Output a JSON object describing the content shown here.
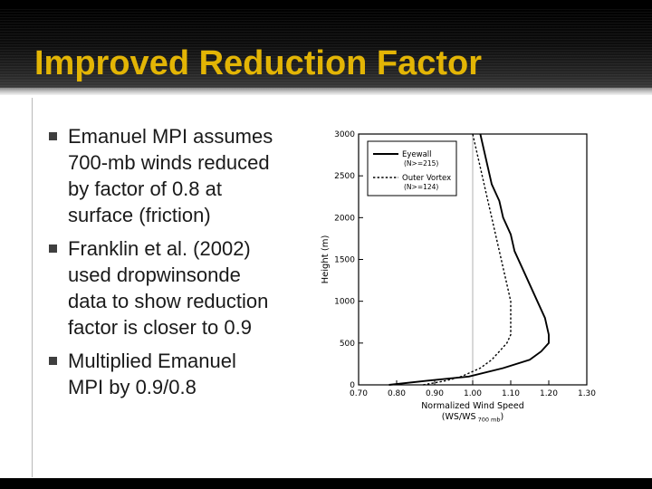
{
  "slide": {
    "title": "Improved Reduction Factor",
    "bullets": [
      {
        "text": "Emanuel MPI assumes\n700-mb winds reduced\nby factor of 0.8 at\nsurface (friction)"
      },
      {
        "text": "Franklin et al. (2002)\nused dropwinsonde\ndata to show reduction\nfactor is closer to 0.9"
      },
      {
        "text": "Multiplied Emanuel\nMPI by 0.9/0.8"
      }
    ]
  },
  "theme": {
    "title_color": "#E3B505",
    "body_text_color": "#1a1a1a",
    "bullet_marker_color": "#3f3f3f",
    "header_bg_top": "#000000",
    "header_bg_bottom": "#383838",
    "chart_line_color": "#000000",
    "reference_line_color": "#aaaaaa"
  },
  "chart_data": {
    "type": "line",
    "title": "",
    "xlabel": "Normalized Wind Speed",
    "xlabel_sub_prefix": "(WS/WS",
    "xlabel_subscript": "700 mb",
    "xlabel_sub_suffix": ")",
    "ylabel": "Height (m)",
    "xlim": [
      0.7,
      1.3
    ],
    "ylim": [
      0,
      3000
    ],
    "xtick_values": [
      0.7,
      0.8,
      0.9,
      1.0,
      1.1,
      1.2,
      1.3
    ],
    "xtick_labels": [
      "0.70",
      "0.80",
      "0.90",
      "1.00",
      "1.10",
      "1.20",
      "1.30"
    ],
    "ytick_values": [
      0,
      500,
      1000,
      1500,
      2000,
      2500,
      3000
    ],
    "ytick_labels": [
      "0",
      "500",
      "1000",
      "1500",
      "2000",
      "2500",
      "3000"
    ],
    "reference_line_x": 1.0,
    "grid": false,
    "legend_position": "top-left",
    "series": [
      {
        "name": "Eyewall",
        "count_label": "(N>=215)",
        "style": "solid",
        "points": [
          [
            0.78,
            0
          ],
          [
            0.88,
            50
          ],
          [
            0.99,
            100
          ],
          [
            1.08,
            200
          ],
          [
            1.15,
            300
          ],
          [
            1.18,
            400
          ],
          [
            1.2,
            500
          ],
          [
            1.2,
            600
          ],
          [
            1.19,
            800
          ],
          [
            1.17,
            1000
          ],
          [
            1.15,
            1200
          ],
          [
            1.13,
            1400
          ],
          [
            1.11,
            1600
          ],
          [
            1.1,
            1800
          ],
          [
            1.08,
            2000
          ],
          [
            1.07,
            2200
          ],
          [
            1.05,
            2400
          ],
          [
            1.04,
            2600
          ],
          [
            1.03,
            2800
          ],
          [
            1.02,
            3000
          ]
        ]
      },
      {
        "name": "Outer Vortex",
        "count_label": "(N>=124)",
        "style": "dashed",
        "points": [
          [
            0.87,
            0
          ],
          [
            0.93,
            50
          ],
          [
            0.97,
            100
          ],
          [
            1.02,
            200
          ],
          [
            1.05,
            300
          ],
          [
            1.07,
            400
          ],
          [
            1.09,
            500
          ],
          [
            1.1,
            600
          ],
          [
            1.1,
            800
          ],
          [
            1.1,
            1000
          ],
          [
            1.09,
            1200
          ],
          [
            1.08,
            1400
          ],
          [
            1.07,
            1600
          ],
          [
            1.06,
            1800
          ],
          [
            1.05,
            2000
          ],
          [
            1.04,
            2200
          ],
          [
            1.03,
            2400
          ],
          [
            1.02,
            2600
          ],
          [
            1.01,
            2800
          ],
          [
            1.0,
            3000
          ]
        ]
      }
    ]
  }
}
